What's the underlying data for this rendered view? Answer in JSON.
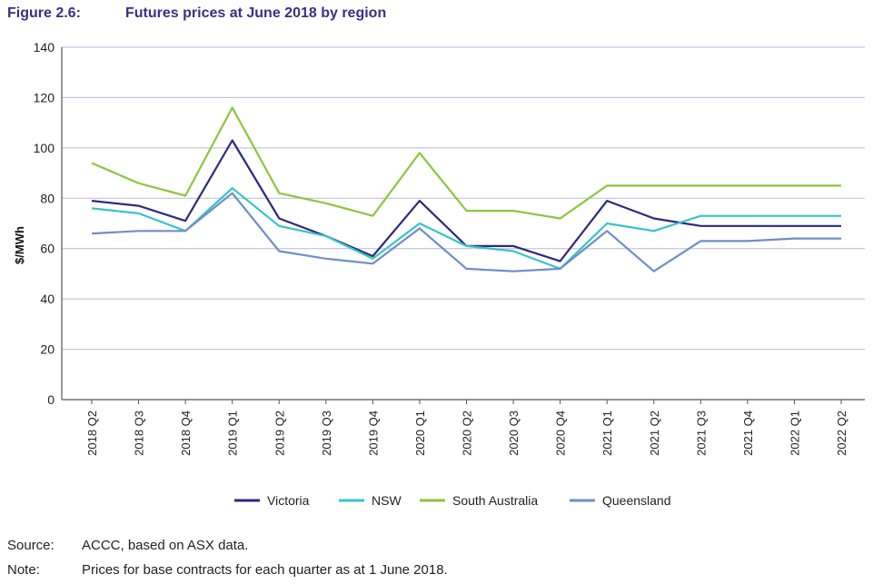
{
  "figure": {
    "number": "Figure 2.6:",
    "title": "Futures prices at June 2018 by region"
  },
  "notes": [
    {
      "label": "Source:",
      "text": "ACCC, based on ASX data."
    },
    {
      "label": "Note:",
      "text": "Prices for base contracts for each quarter as at 1 June 2018."
    }
  ],
  "chart_data": {
    "type": "line",
    "title": "Futures prices at June 2018 by region",
    "xlabel": "",
    "ylabel": "$/MWh",
    "ylim": [
      0,
      140
    ],
    "yticks": [
      0,
      20,
      40,
      60,
      80,
      100,
      120,
      140
    ],
    "grid": true,
    "legend_position": "bottom",
    "categories": [
      "2018 Q2",
      "2018 Q3",
      "2018 Q4",
      "2019 Q1",
      "2019 Q2",
      "2019 Q3",
      "2019 Q4",
      "2020 Q1",
      "2020 Q2",
      "2020 Q3",
      "2020 Q4",
      "2021 Q1",
      "2021 Q2",
      "2021 Q3",
      "2021 Q4",
      "2022 Q1",
      "2022 Q2"
    ],
    "series": [
      {
        "name": "Victoria",
        "color": "#2e2a7a",
        "values": [
          79,
          77,
          71,
          103,
          72,
          65,
          57,
          79,
          61,
          61,
          55,
          79,
          72,
          69,
          69,
          69,
          69
        ]
      },
      {
        "name": "NSW",
        "color": "#37c3c9",
        "values": [
          76,
          74,
          67,
          84,
          69,
          65,
          56,
          70,
          61,
          59,
          52,
          70,
          67,
          73,
          73,
          73,
          73
        ]
      },
      {
        "name": "South Australia",
        "color": "#8cc63f",
        "values": [
          94,
          86,
          81,
          116,
          82,
          78,
          73,
          98,
          75,
          75,
          72,
          85,
          85,
          85,
          85,
          85,
          85
        ]
      },
      {
        "name": "Queensland",
        "color": "#6e8ec8",
        "values": [
          66,
          67,
          67,
          82,
          59,
          56,
          54,
          68,
          52,
          51,
          52,
          67,
          51,
          63,
          63,
          64,
          64
        ]
      }
    ]
  }
}
